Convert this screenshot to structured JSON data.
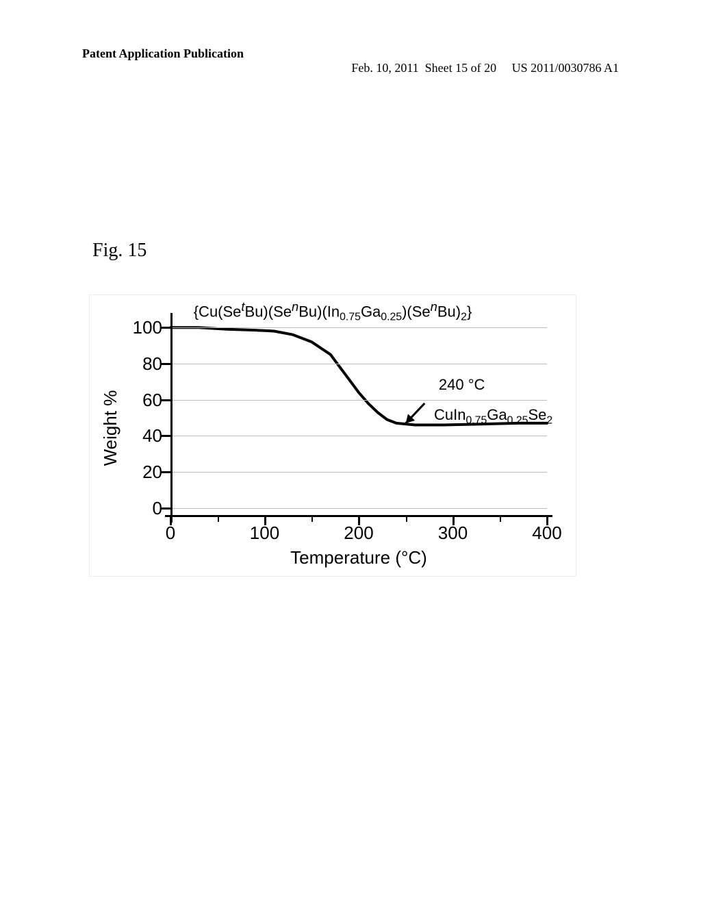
{
  "header": {
    "left": "Patent Application Publication",
    "center": "Feb. 10, 2011  Sheet 15 of 20",
    "right": "US 2011/0030786 A1"
  },
  "figure_label": "Fig. 15",
  "chart": {
    "type": "line",
    "title_html": "{Cu(Se<sup><i>t</i></sup>Bu)(Se<sup><i>n</i></sup>Bu)(In<sub>0.75</sub>Ga<sub>0.25</sub>)(Se<sup><i>n</i></sup>Bu)<sub>2</sub>}",
    "ylabel": "Weight %",
    "xlabel": "Temperature (°C)",
    "xlim": [
      0,
      400
    ],
    "ylim": [
      -5,
      105
    ],
    "x_ticks": [
      0,
      100,
      200,
      300,
      400
    ],
    "x_minor_ticks": [
      50,
      150,
      250,
      350
    ],
    "y_ticks": [
      0,
      20,
      40,
      60,
      80,
      100
    ],
    "grid_y": [
      0,
      20,
      40,
      60,
      80,
      100
    ],
    "grid_color": "#bdbdbd",
    "line_color": "#000000",
    "line_width": 4,
    "background_color": "#ffffff",
    "series": {
      "x": [
        0,
        30,
        60,
        90,
        110,
        130,
        150,
        170,
        180,
        190,
        200,
        210,
        220,
        230,
        240,
        260,
        290,
        330,
        370,
        400
      ],
      "y": [
        100,
        100,
        99,
        98.5,
        98,
        96,
        92,
        85,
        78,
        71,
        64,
        58,
        53,
        49,
        47,
        46,
        46,
        46.5,
        47,
        47
      ]
    },
    "annotations": {
      "temp_label": {
        "text": "240 °C",
        "x_chart": 285,
        "y_chart": 68
      },
      "product_html": "CuIn<sub>0.75</sub>Ga<sub>0.25</sub>Se<sub>2</sub>",
      "product_pos": {
        "x_chart": 280,
        "y_chart": 52
      },
      "arrow": {
        "from": {
          "x_chart": 270,
          "y_chart": 58
        },
        "to": {
          "x_chart": 250,
          "y_chart": 47
        }
      }
    }
  }
}
